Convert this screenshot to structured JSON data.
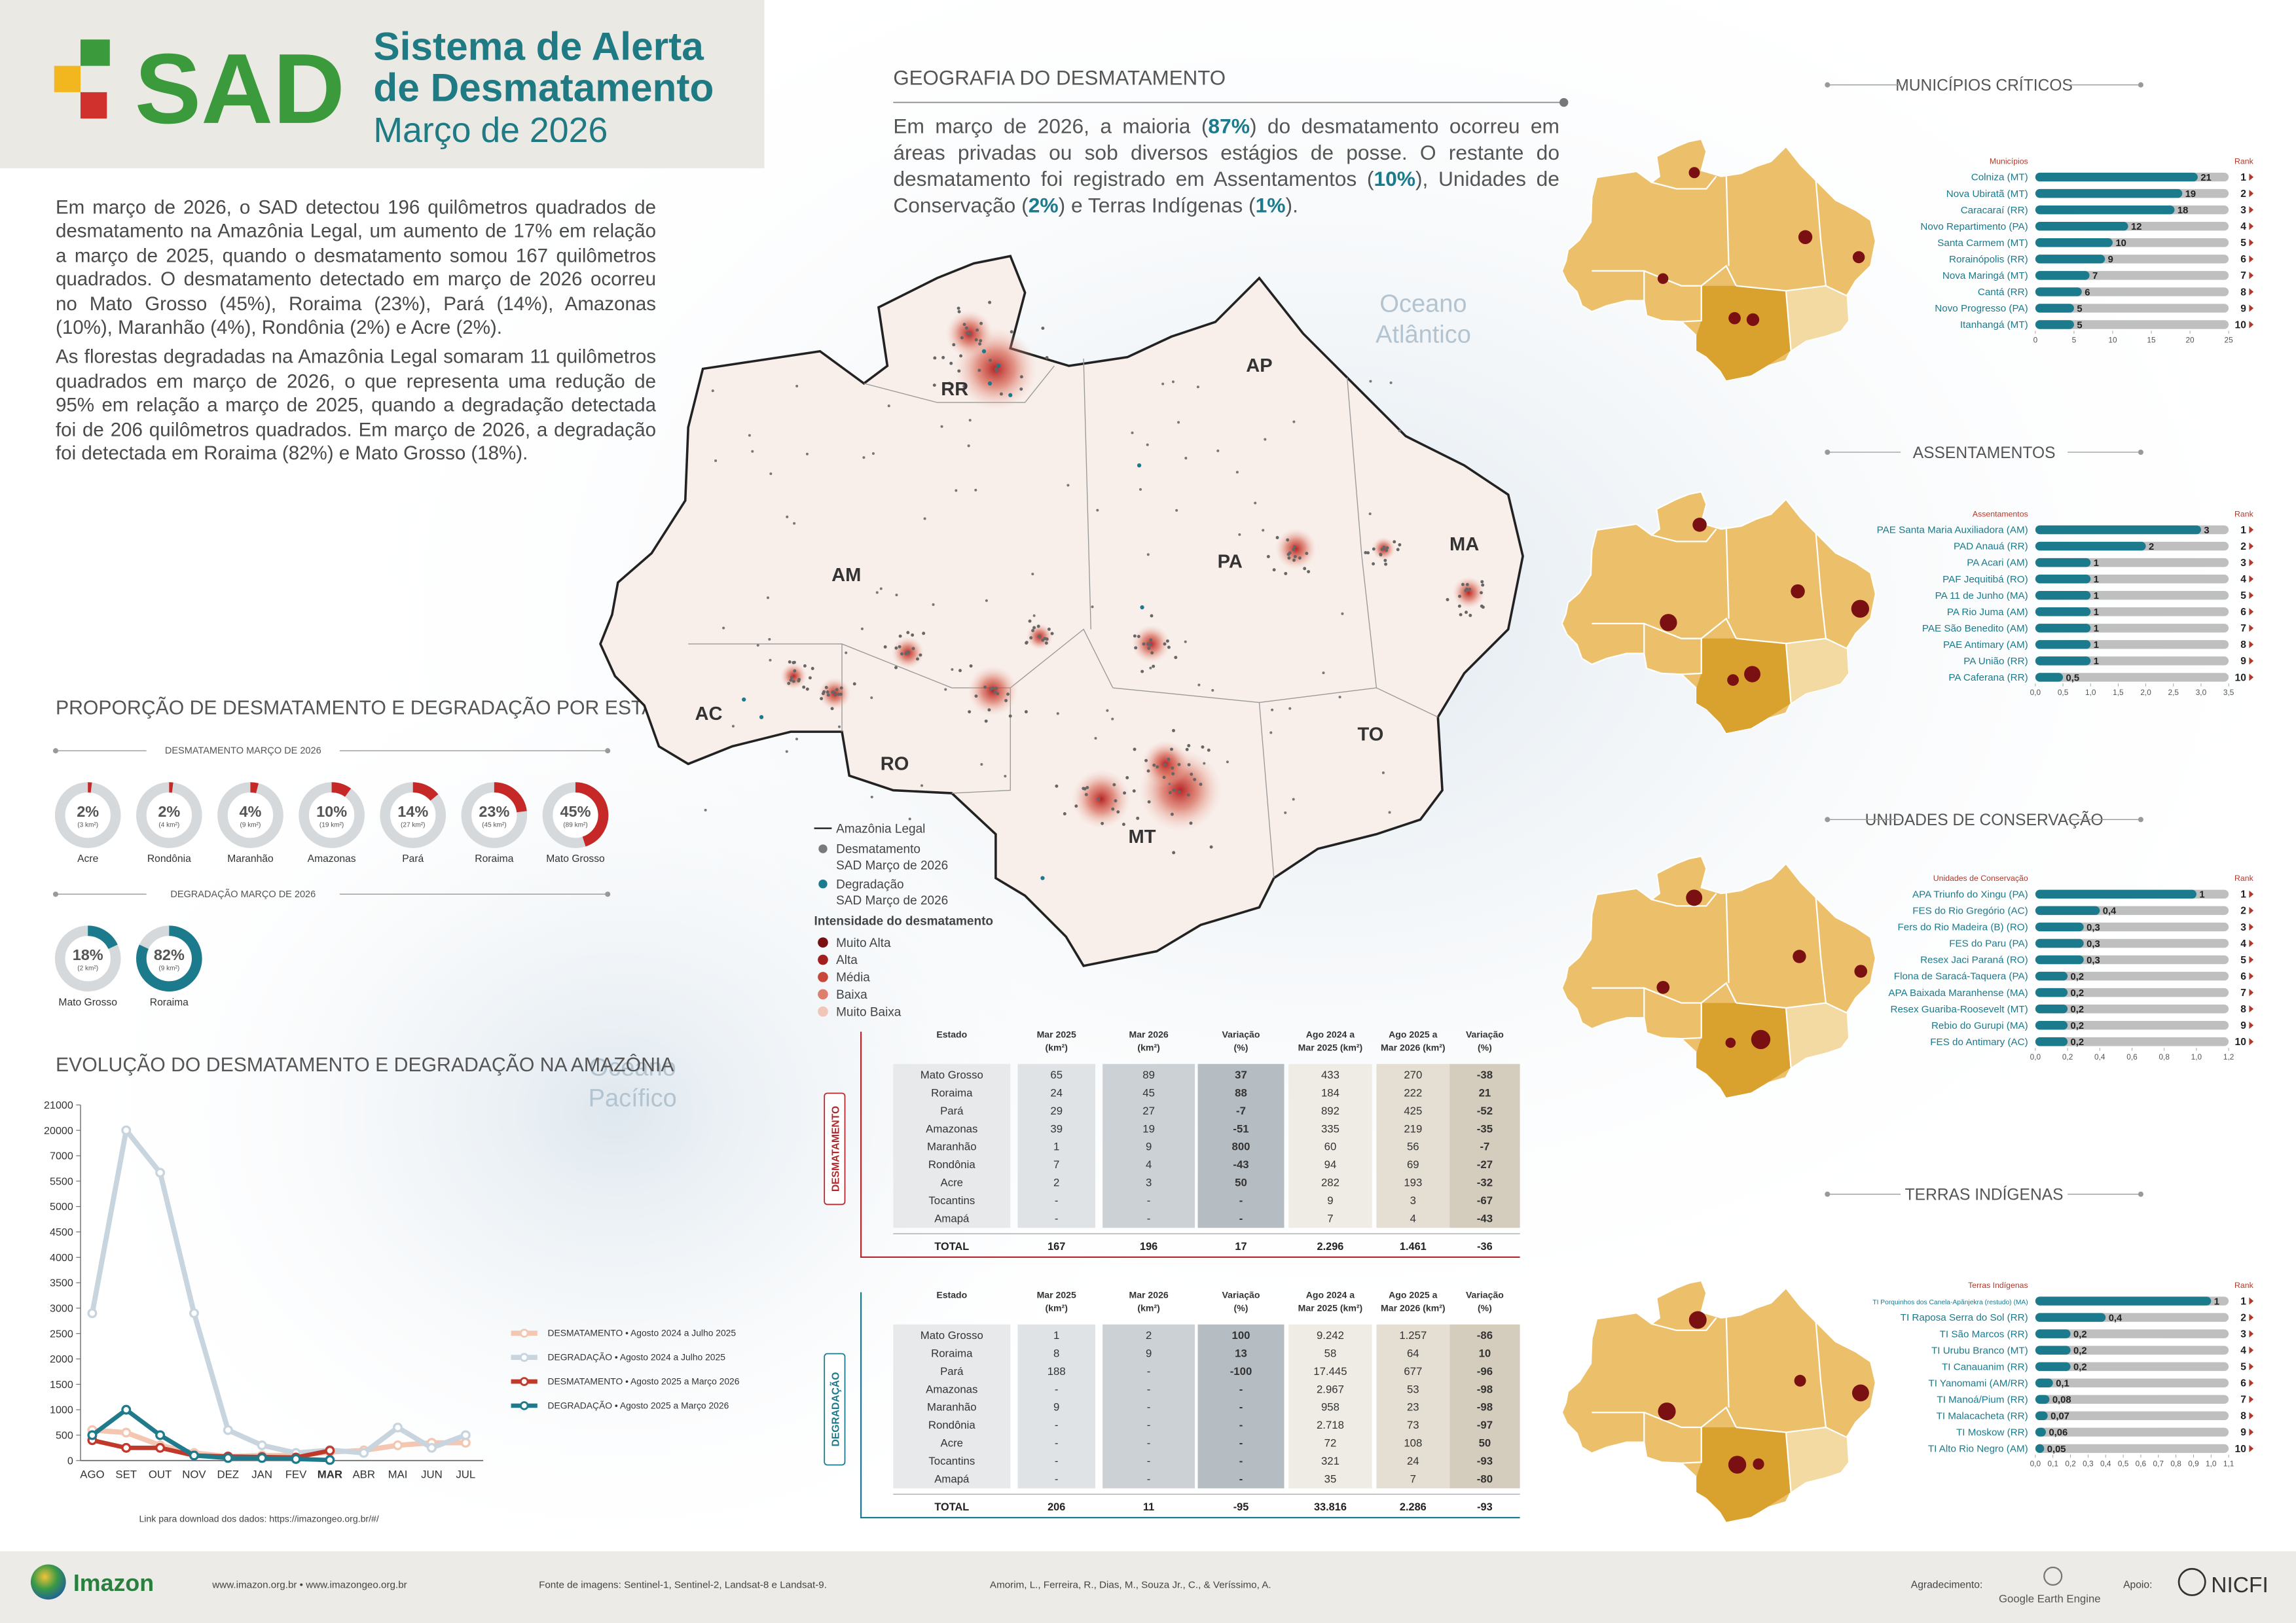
{
  "header": {
    "logo": "SAD",
    "title_lines": [
      "Sistema de Alerta",
      "de Desmatamento"
    ],
    "subtitle": "Março de 2026"
  },
  "intro": [
    "Em março de 2026, o SAD detectou 196 quilômetros quadrados de desmatamento na Amazônia Legal, um aumento de 17% em relação a março de 2025, quando o desmatamento somou 167 quilômetros quadrados. O desmatamento detectado em março de 2026 ocorreu no Mato Grosso (45%), Roraima (23%), Pará (14%), Amazonas (10%), Maranhão (4%), Rondônia (2%) e Acre (2%).",
    "As florestas degradadas na Amazônia Legal somaram 11 quilômetros quadrados em março de 2026, o que representa uma redução de 95% em relação a março de 2025, quando a degradação detectada foi de 206 quilômetros quadrados. Em março de 2026, a degradação foi detectada em Roraima (82%) e Mato Grosso (18%)."
  ],
  "geography": {
    "title": "GEOGRAFIA DO DESMATAMENTO",
    "runs": [
      {
        "text": "Em março de 2026, a maioria ("
      },
      {
        "text": "87%",
        "bold": true
      },
      {
        "text": ") do desmatamento ocorreu em áreas privadas ou sob diversos estágios de posse. O restante do desmatamento foi registrado em Assentamentos ("
      },
      {
        "text": "10%",
        "bold": true
      },
      {
        "text": "), Unidades de Conservação ("
      },
      {
        "text": "2%",
        "bold": true
      },
      {
        "text": ") e Terras Indígenas ("
      },
      {
        "text": "1%",
        "bold": true
      },
      {
        "text": ")."
      }
    ]
  },
  "map": {
    "states": [
      "RR",
      "AP",
      "AM",
      "PA",
      "MA",
      "AC",
      "RO",
      "MT",
      "TO"
    ],
    "oceans": [
      [
        "Oceano",
        "Atlântico"
      ],
      [
        "Oceano",
        "Pacífico"
      ]
    ],
    "legend": {
      "boundary": "Amazônia Legal",
      "points": [
        {
          "lines": [
            "Desmatamento",
            "SAD Março de 2026"
          ],
          "color": "#7a7a7a"
        },
        {
          "lines": [
            "Degradação",
            "SAD Março de 2026"
          ],
          "color": "#1b7a8c"
        }
      ],
      "intensity_title": "Intensidade do desmatamento",
      "intensity": [
        {
          "label": "Muito Alta",
          "color": "#7b1013"
        },
        {
          "label": "Alta",
          "color": "#a31e1e"
        },
        {
          "label": "Média",
          "color": "#c8463a"
        },
        {
          "label": "Baixa",
          "color": "#de7f6c"
        },
        {
          "label": "Muito Baixa",
          "color": "#f0c6b9"
        }
      ]
    }
  },
  "section_titles": {
    "proportion": "PROPORÇÃO DE DESMATAMENTO E DEGRADAÇÃO POR ESTADO"
  },
  "chart_data": [
    {
      "type": "donut",
      "title": "DESMATAMENTO MARÇO DE 2026",
      "color": "#c62828",
      "track_color": "#d5d9dc",
      "categories": [
        "Acre",
        "Rondônia",
        "Maranhão",
        "Amazonas",
        "Pará",
        "Roraima",
        "Mato Grosso"
      ],
      "values": [
        2,
        2,
        4,
        10,
        14,
        23,
        45
      ],
      "value_labels": [
        "2%",
        "2%",
        "4%",
        "10%",
        "14%",
        "23%",
        "45%"
      ],
      "area_labels": [
        "(3 km²)",
        "(4 km²)",
        "(9 km²)",
        "(19 km²)",
        "(27 km²)",
        "(45 km²)",
        "(89 km²)"
      ]
    },
    {
      "type": "donut",
      "title": "DEGRADAÇÃO MARÇO DE 2026",
      "color": "#1b7a8c",
      "track_color": "#d5d9dc",
      "categories": [
        "Mato Grosso",
        "Roraima"
      ],
      "values": [
        18,
        82
      ],
      "value_labels": [
        "18%",
        "82%"
      ],
      "area_labels": [
        "(2 km²)",
        "(9 km²)"
      ]
    },
    {
      "type": "line",
      "title": "EVOLUÇÃO DO DESMATAMENTO E DEGRADAÇÃO NA AMAZÔNIA",
      "caption": "Link para download dos dados: https://imazongeo.org.br/#/",
      "categories": [
        "AGO",
        "SET",
        "OUT",
        "NOV",
        "DEZ",
        "JAN",
        "FEV",
        "MAR",
        "ABR",
        "MAI",
        "JUN",
        "JUL"
      ],
      "highlight_index": 7,
      "ylim": [
        0,
        21000
      ],
      "yticks": [
        0,
        500,
        1000,
        1500,
        2000,
        2500,
        3000,
        3500,
        4000,
        4500,
        5000,
        5500,
        7000,
        20000,
        21000
      ],
      "series": [
        {
          "name": "DESMATAMENTO • Agosto 2024 a Julho 2025",
          "color": "#f3c7b2",
          "width": 3.5,
          "values": [
            600,
            550,
            300,
            150,
            80,
            100,
            100,
            167,
            200,
            300,
            350,
            350
          ]
        },
        {
          "name": "DEGRADAÇÃO • Agosto 2024 a Julho 2025",
          "color": "#c8d5de",
          "width": 3.5,
          "values": [
            2900,
            20000,
            6000,
            2900,
            600,
            300,
            150,
            206,
            150,
            650,
            250,
            500
          ]
        },
        {
          "name": "DESMATAMENTO • Agosto 2025 a Março 2026",
          "color": "#c0392b",
          "width": 3,
          "values": [
            400,
            250,
            250,
            100,
            80,
            70,
            60,
            196,
            null,
            null,
            null,
            null
          ]
        },
        {
          "name": "DEGRADAÇÃO • Agosto 2025 a Março 2026",
          "color": "#1f7a8c",
          "width": 3,
          "values": [
            500,
            1000,
            500,
            100,
            50,
            50,
            30,
            11,
            null,
            null,
            null,
            null
          ]
        }
      ]
    },
    {
      "type": "hbar",
      "title": "MUNICÍPIOS CRÍTICOS",
      "category_header": "Municípios",
      "rank_header": "Rank",
      "color": "#1b7a8c",
      "track_color": "#bfbfbf",
      "categories": [
        "Colniza (MT)",
        "Nova Ubiratã (MT)",
        "Caracaraí (RR)",
        "Novo Repartimento (PA)",
        "Santa Carmem (MT)",
        "Rorainópolis (RR)",
        "Nova Maringá (MT)",
        "Cantá (RR)",
        "Novo Progresso (PA)",
        "Itanhangá (MT)"
      ],
      "values": [
        21,
        19,
        18,
        12,
        10,
        9,
        7,
        6,
        5,
        5
      ],
      "ranks": [
        1,
        2,
        3,
        4,
        5,
        6,
        7,
        8,
        9,
        10
      ],
      "xlim": [
        0,
        25
      ],
      "xticks": [
        0,
        5,
        10,
        15,
        20,
        25
      ]
    },
    {
      "type": "hbar",
      "title": "ASSENTAMENTOS",
      "category_header": "Assentamentos",
      "rank_header": "Rank",
      "color": "#1b7a8c",
      "track_color": "#bfbfbf",
      "categories": [
        "PAE Santa Maria Auxiliadora (AM)",
        "PAD Anauá (RR)",
        "PA Acari (AM)",
        "PAF Jequitibá (RO)",
        "PA 11 de Junho (MA)",
        "PA Rio Juma (AM)",
        "PAE São Benedito (AM)",
        "PAE Antimary (AM)",
        "PA União (RR)",
        "PA Caferana (RR)"
      ],
      "values": [
        3,
        2,
        1,
        1,
        1,
        1,
        1,
        1,
        1,
        0.5
      ],
      "value_labels": [
        "3",
        "2",
        "1",
        "1",
        "1",
        "1",
        "1",
        "1",
        "1",
        "0,5"
      ],
      "ranks": [
        1,
        2,
        3,
        4,
        5,
        6,
        7,
        8,
        9,
        10
      ],
      "xlim": [
        0,
        3.5
      ],
      "xticks": [
        {
          "value": 0,
          "label": "0,0"
        },
        {
          "value": 0.5,
          "label": "0,5"
        },
        {
          "value": 1,
          "label": "1,0"
        },
        {
          "value": 1.5,
          "label": "1,5"
        },
        {
          "value": 2,
          "label": "2,0"
        },
        {
          "value": 2.5,
          "label": "2,5"
        },
        {
          "value": 3,
          "label": "3,0"
        },
        {
          "value": 3.5,
          "label": "3,5"
        }
      ]
    },
    {
      "type": "hbar",
      "title": "UNIDADES DE CONSERVAÇÃO",
      "category_header": "Unidades de Conservação",
      "rank_header": "Rank",
      "color": "#1b7a8c",
      "track_color": "#bfbfbf",
      "categories": [
        "APA Triunfo do Xingu (PA)",
        "FES do Rio Gregório (AC)",
        "Fers do Rio Madeira (B) (RO)",
        "FES do Paru (PA)",
        "Resex Jaci Paraná (RO)",
        "Flona de Saracá-Taquera (PA)",
        "APA Baixada Maranhense (MA)",
        "Resex Guariba-Roosevelt (MT)",
        "Rebio do Gurupi (MA)",
        "FES do Antimary (AC)"
      ],
      "values": [
        1,
        0.4,
        0.3,
        0.3,
        0.3,
        0.2,
        0.2,
        0.2,
        0.2,
        0.2
      ],
      "value_labels": [
        "1",
        "0,4",
        "0,3",
        "0,3",
        "0,3",
        "0,2",
        "0,2",
        "0,2",
        "0,2",
        "0,2"
      ],
      "ranks": [
        1,
        2,
        3,
        4,
        5,
        6,
        7,
        8,
        9,
        10
      ],
      "xlim": [
        0,
        1.2
      ],
      "xticks": [
        {
          "value": 0,
          "label": "0,0"
        },
        {
          "value": 0.2,
          "label": "0,2"
        },
        {
          "value": 0.4,
          "label": "0,4"
        },
        {
          "value": 0.6,
          "label": "0,6"
        },
        {
          "value": 0.8,
          "label": "0,8"
        },
        {
          "value": 1,
          "label": "1,0"
        },
        {
          "value": 1.2,
          "label": "1,2"
        }
      ]
    },
    {
      "type": "hbar",
      "title": "TERRAS INDÍGENAS",
      "category_header": "Terras Indígenas",
      "rank_header": "Rank",
      "color": "#1b7a8c",
      "track_color": "#bfbfbf",
      "categories": [
        "TI Porquinhos dos Canela-Apãnjekra (restudo) (MA)",
        "TI Raposa Serra do Sol (RR)",
        "TI São Marcos (RR)",
        "TI Urubu Branco (MT)",
        "TI Canauanim (RR)",
        "TI Yanomami (AM/RR)",
        "TI Manoá/Pium (RR)",
        "TI Malacacheta (RR)",
        "TI Moskow (RR)",
        "TI Alto Rio Negro (AM)"
      ],
      "values": [
        1,
        0.4,
        0.2,
        0.2,
        0.2,
        0.1,
        0.08,
        0.07,
        0.06,
        0.05
      ],
      "value_labels": [
        "1",
        "0,4",
        "0,2",
        "0,2",
        "0,2",
        "0,1",
        "0,08",
        "0,07",
        "0,06",
        "0,05"
      ],
      "ranks": [
        1,
        2,
        3,
        4,
        5,
        6,
        7,
        8,
        9,
        10
      ],
      "xlim": [
        0,
        1.1
      ],
      "xticks": [
        {
          "value": 0,
          "label": "0,0"
        },
        {
          "value": 0.1,
          "label": "0,1"
        },
        {
          "value": 0.2,
          "label": "0,2"
        },
        {
          "value": 0.3,
          "label": "0,3"
        },
        {
          "value": 0.4,
          "label": "0,4"
        },
        {
          "value": 0.5,
          "label": "0,5"
        },
        {
          "value": 0.6,
          "label": "0,6"
        },
        {
          "value": 0.7,
          "label": "0,7"
        },
        {
          "value": 0.8,
          "label": "0,8"
        },
        {
          "value": 0.9,
          "label": "0,9"
        },
        {
          "value": 1,
          "label": "1,0"
        },
        {
          "value": 1.1,
          "label": "1,1"
        }
      ]
    }
  ],
  "tables": [
    {
      "label": "DESMATAMENTO",
      "color": "#b3282d",
      "columns": [
        [
          "Estado"
        ],
        [
          "Mar 2025",
          "(km²)"
        ],
        [
          "Mar 2026",
          "(km²)"
        ],
        [
          "Variação",
          "(%)"
        ],
        [
          "Ago 2024 a",
          "Mar 2025 (km²)"
        ],
        [
          "Ago 2025 a",
          "Mar 2026 (km²)"
        ],
        [
          "Variação",
          "(%)"
        ]
      ],
      "rows": [
        [
          "Mato Grosso",
          "65",
          "89",
          "37",
          "433",
          "270",
          "-38"
        ],
        [
          "Roraima",
          "24",
          "45",
          "88",
          "184",
          "222",
          "21"
        ],
        [
          "Pará",
          "29",
          "27",
          "-7",
          "892",
          "425",
          "-52"
        ],
        [
          "Amazonas",
          "39",
          "19",
          "-51",
          "335",
          "219",
          "-35"
        ],
        [
          "Maranhão",
          "1",
          "9",
          "800",
          "60",
          "56",
          "-7"
        ],
        [
          "Rondônia",
          "7",
          "4",
          "-43",
          "94",
          "69",
          "-27"
        ],
        [
          "Acre",
          "2",
          "3",
          "50",
          "282",
          "193",
          "-32"
        ],
        [
          "Tocantins",
          "-",
          "-",
          "-",
          "9",
          "3",
          "-67"
        ],
        [
          "Amapá",
          "-",
          "-",
          "-",
          "7",
          "4",
          "-43"
        ]
      ],
      "total": [
        "TOTAL",
        "167",
        "196",
        "17",
        "2.296",
        "1.461",
        "-36"
      ]
    },
    {
      "label": "DEGRADAÇÃO",
      "color": "#1b7a8c",
      "columns": [
        [
          "Estado"
        ],
        [
          "Mar 2025",
          "(km²)"
        ],
        [
          "Mar 2026",
          "(km²)"
        ],
        [
          "Variação",
          "(%)"
        ],
        [
          "Ago 2024 a",
          "Mar 2025 (km²)"
        ],
        [
          "Ago 2025 a",
          "Mar 2026 (km²)"
        ],
        [
          "Variação",
          "(%)"
        ]
      ],
      "rows": [
        [
          "Mato Grosso",
          "1",
          "2",
          "100",
          "9.242",
          "1.257",
          "-86"
        ],
        [
          "Roraima",
          "8",
          "9",
          "13",
          "58",
          "64",
          "10"
        ],
        [
          "Pará",
          "188",
          "-",
          "-100",
          "17.445",
          "677",
          "-96"
        ],
        [
          "Amazonas",
          "-",
          "-",
          "-",
          "2.967",
          "53",
          "-98"
        ],
        [
          "Maranhão",
          "9",
          "-",
          "-",
          "958",
          "23",
          "-98"
        ],
        [
          "Rondônia",
          "-",
          "-",
          "-",
          "2.718",
          "73",
          "-97"
        ],
        [
          "Acre",
          "-",
          "-",
          "-",
          "72",
          "108",
          "50"
        ],
        [
          "Tocantins",
          "-",
          "-",
          "-",
          "321",
          "24",
          "-93"
        ],
        [
          "Amapá",
          "-",
          "-",
          "-",
          "35",
          "7",
          "-80"
        ]
      ],
      "total": [
        "TOTAL",
        "206",
        "11",
        "-95",
        "33.816",
        "2.286",
        "-93"
      ]
    }
  ],
  "footer": {
    "brand": "Imazon",
    "websites": "www.imazon.org.br • www.imazongeo.org.br",
    "source": "Fonte de imagens: Sentinel-1, Sentinel-2, Landsat-8 e Landsat-9.",
    "authors": "Amorim, L., Ferreira, R., Dias, M., Souza Jr., C., & Veríssimo, A.",
    "thanks_label": "Agradecimento:",
    "thanks": "Google Earth Engine",
    "support_label": "Apoio:",
    "support": "NICFI"
  }
}
